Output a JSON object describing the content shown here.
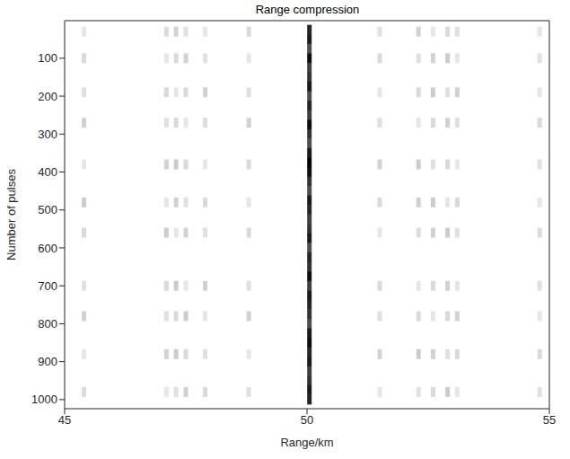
{
  "chart_data": {
    "type": "heatmap",
    "title": "Range compression",
    "x_label": "Range/km",
    "y_label": "Number of pulses",
    "xlim": [
      45,
      55
    ],
    "xticks": [
      45,
      50,
      55
    ],
    "ylim": [
      1,
      1024
    ],
    "yticks": [
      100,
      200,
      300,
      400,
      500,
      600,
      700,
      800,
      900,
      1000
    ],
    "grid": false,
    "color": "#000000",
    "clim": [
      0,
      1
    ],
    "cells": [
      [
        50.05,
        25,
        0.85
      ],
      [
        50.05,
        50,
        0.9
      ],
      [
        50.05,
        75,
        0.7
      ],
      [
        50.05,
        100,
        0.95
      ],
      [
        50.05,
        125,
        0.75
      ],
      [
        50.05,
        150,
        0.8
      ],
      [
        50.05,
        175,
        0.9
      ],
      [
        50.05,
        200,
        0.7
      ],
      [
        50.05,
        225,
        0.85
      ],
      [
        50.05,
        250,
        0.75
      ],
      [
        50.05,
        275,
        0.95
      ],
      [
        50.05,
        300,
        0.8
      ],
      [
        50.05,
        325,
        0.7
      ],
      [
        50.05,
        350,
        0.9
      ],
      [
        50.05,
        375,
        1
      ],
      [
        50.05,
        400,
        0.95
      ],
      [
        50.05,
        425,
        0.8
      ],
      [
        50.05,
        450,
        0.7
      ],
      [
        50.05,
        475,
        0.9
      ],
      [
        50.05,
        500,
        0.85
      ],
      [
        50.05,
        525,
        0.75
      ],
      [
        50.05,
        550,
        0.8
      ],
      [
        50.05,
        575,
        0.9
      ],
      [
        50.05,
        600,
        0.7
      ],
      [
        50.05,
        625,
        0.85
      ],
      [
        50.05,
        650,
        0.8
      ],
      [
        50.05,
        675,
        0.95
      ],
      [
        50.05,
        700,
        0.75
      ],
      [
        50.05,
        725,
        0.9
      ],
      [
        50.05,
        750,
        0.85
      ],
      [
        50.05,
        775,
        0.8
      ],
      [
        50.05,
        800,
        0.7
      ],
      [
        50.05,
        825,
        0.9
      ],
      [
        50.05,
        850,
        0.95
      ],
      [
        50.05,
        875,
        0.85
      ],
      [
        50.05,
        900,
        0.9
      ],
      [
        50.05,
        925,
        0.75
      ],
      [
        50.05,
        950,
        0.8
      ],
      [
        50.05,
        975,
        0.9
      ],
      [
        50.05,
        1000,
        0.85
      ],
      [
        45.4,
        30,
        0.1
      ],
      [
        45.4,
        100,
        0.15
      ],
      [
        45.4,
        190,
        0.12
      ],
      [
        45.4,
        270,
        0.18
      ],
      [
        45.4,
        380,
        0.1
      ],
      [
        45.4,
        480,
        0.2
      ],
      [
        45.4,
        560,
        0.15
      ],
      [
        45.4,
        700,
        0.12
      ],
      [
        45.4,
        780,
        0.18
      ],
      [
        45.4,
        880,
        0.1
      ],
      [
        45.4,
        980,
        0.14
      ],
      [
        47.1,
        30,
        0.14
      ],
      [
        47.1,
        100,
        0.1
      ],
      [
        47.1,
        190,
        0.15
      ],
      [
        47.1,
        270,
        0.12
      ],
      [
        47.1,
        380,
        0.18
      ],
      [
        47.1,
        480,
        0.1
      ],
      [
        47.1,
        560,
        0.2
      ],
      [
        47.1,
        700,
        0.15
      ],
      [
        47.1,
        780,
        0.12
      ],
      [
        47.1,
        880,
        0.18
      ],
      [
        47.1,
        980,
        0.1
      ],
      [
        47.3,
        30,
        0.18
      ],
      [
        47.3,
        100,
        0.14
      ],
      [
        47.3,
        190,
        0.1
      ],
      [
        47.3,
        270,
        0.15
      ],
      [
        47.3,
        380,
        0.2
      ],
      [
        47.3,
        480,
        0.18
      ],
      [
        47.3,
        560,
        0.1
      ],
      [
        47.3,
        700,
        0.2
      ],
      [
        47.3,
        780,
        0.15
      ],
      [
        47.3,
        880,
        0.2
      ],
      [
        47.3,
        980,
        0.12
      ],
      [
        47.5,
        30,
        0.12
      ],
      [
        47.5,
        100,
        0.18
      ],
      [
        47.5,
        190,
        0.14
      ],
      [
        47.5,
        270,
        0.1
      ],
      [
        47.5,
        380,
        0.15
      ],
      [
        47.5,
        480,
        0.12
      ],
      [
        47.5,
        560,
        0.18
      ],
      [
        47.5,
        700,
        0.1
      ],
      [
        47.5,
        780,
        0.2
      ],
      [
        47.5,
        880,
        0.15
      ],
      [
        47.5,
        980,
        0.18
      ],
      [
        47.9,
        30,
        0.1
      ],
      [
        47.9,
        100,
        0.12
      ],
      [
        47.9,
        190,
        0.18
      ],
      [
        47.9,
        270,
        0.14
      ],
      [
        47.9,
        380,
        0.1
      ],
      [
        47.9,
        480,
        0.15
      ],
      [
        47.9,
        560,
        0.12
      ],
      [
        47.9,
        700,
        0.18
      ],
      [
        47.9,
        780,
        0.1
      ],
      [
        47.9,
        880,
        0.12
      ],
      [
        47.9,
        980,
        0.15
      ],
      [
        48.8,
        30,
        0.15
      ],
      [
        48.8,
        100,
        0.1
      ],
      [
        48.8,
        190,
        0.12
      ],
      [
        48.8,
        270,
        0.18
      ],
      [
        48.8,
        380,
        0.14
      ],
      [
        48.8,
        480,
        0.1
      ],
      [
        48.8,
        560,
        0.15
      ],
      [
        48.8,
        700,
        0.12
      ],
      [
        48.8,
        780,
        0.18
      ],
      [
        48.8,
        880,
        0.1
      ],
      [
        48.8,
        980,
        0.12
      ],
      [
        51.5,
        30,
        0.12
      ],
      [
        51.5,
        100,
        0.15
      ],
      [
        51.5,
        190,
        0.1
      ],
      [
        51.5,
        270,
        0.12
      ],
      [
        51.5,
        380,
        0.18
      ],
      [
        51.5,
        480,
        0.14
      ],
      [
        51.5,
        560,
        0.1
      ],
      [
        51.5,
        700,
        0.15
      ],
      [
        51.5,
        780,
        0.12
      ],
      [
        51.5,
        880,
        0.18
      ],
      [
        51.5,
        980,
        0.1
      ],
      [
        52.3,
        30,
        0.18
      ],
      [
        52.3,
        100,
        0.12
      ],
      [
        52.3,
        190,
        0.15
      ],
      [
        52.3,
        270,
        0.1
      ],
      [
        52.3,
        380,
        0.2
      ],
      [
        52.3,
        480,
        0.18
      ],
      [
        52.3,
        560,
        0.14
      ],
      [
        52.3,
        700,
        0.1
      ],
      [
        52.3,
        780,
        0.15
      ],
      [
        52.3,
        880,
        0.2
      ],
      [
        52.3,
        980,
        0.12
      ],
      [
        52.6,
        30,
        0.1
      ],
      [
        52.6,
        100,
        0.18
      ],
      [
        52.6,
        190,
        0.2
      ],
      [
        52.6,
        270,
        0.15
      ],
      [
        52.6,
        380,
        0.12
      ],
      [
        52.6,
        480,
        0.2
      ],
      [
        52.6,
        560,
        0.18
      ],
      [
        52.6,
        700,
        0.15
      ],
      [
        52.6,
        780,
        0.1
      ],
      [
        52.6,
        880,
        0.18
      ],
      [
        52.6,
        980,
        0.15
      ],
      [
        52.9,
        30,
        0.15
      ],
      [
        52.9,
        100,
        0.2
      ],
      [
        52.9,
        190,
        0.12
      ],
      [
        52.9,
        270,
        0.18
      ],
      [
        52.9,
        380,
        0.15
      ],
      [
        52.9,
        480,
        0.1
      ],
      [
        52.9,
        560,
        0.2
      ],
      [
        52.9,
        700,
        0.18
      ],
      [
        52.9,
        780,
        0.15
      ],
      [
        52.9,
        880,
        0.12
      ],
      [
        52.9,
        980,
        0.2
      ],
      [
        53.1,
        30,
        0.12
      ],
      [
        53.1,
        100,
        0.1
      ],
      [
        53.1,
        190,
        0.18
      ],
      [
        53.1,
        270,
        0.12
      ],
      [
        53.1,
        380,
        0.1
      ],
      [
        53.1,
        480,
        0.15
      ],
      [
        53.1,
        560,
        0.12
      ],
      [
        53.1,
        700,
        0.1
      ],
      [
        53.1,
        780,
        0.18
      ],
      [
        53.1,
        880,
        0.15
      ],
      [
        53.1,
        980,
        0.1
      ],
      [
        54.8,
        30,
        0.1
      ],
      [
        54.8,
        100,
        0.12
      ],
      [
        54.8,
        190,
        0.1
      ],
      [
        54.8,
        270,
        0.15
      ],
      [
        54.8,
        380,
        0.12
      ],
      [
        54.8,
        480,
        0.1
      ],
      [
        54.8,
        560,
        0.14
      ],
      [
        54.8,
        700,
        0.12
      ],
      [
        54.8,
        780,
        0.1
      ],
      [
        54.8,
        880,
        0.15
      ],
      [
        54.8,
        980,
        0.12
      ]
    ]
  }
}
